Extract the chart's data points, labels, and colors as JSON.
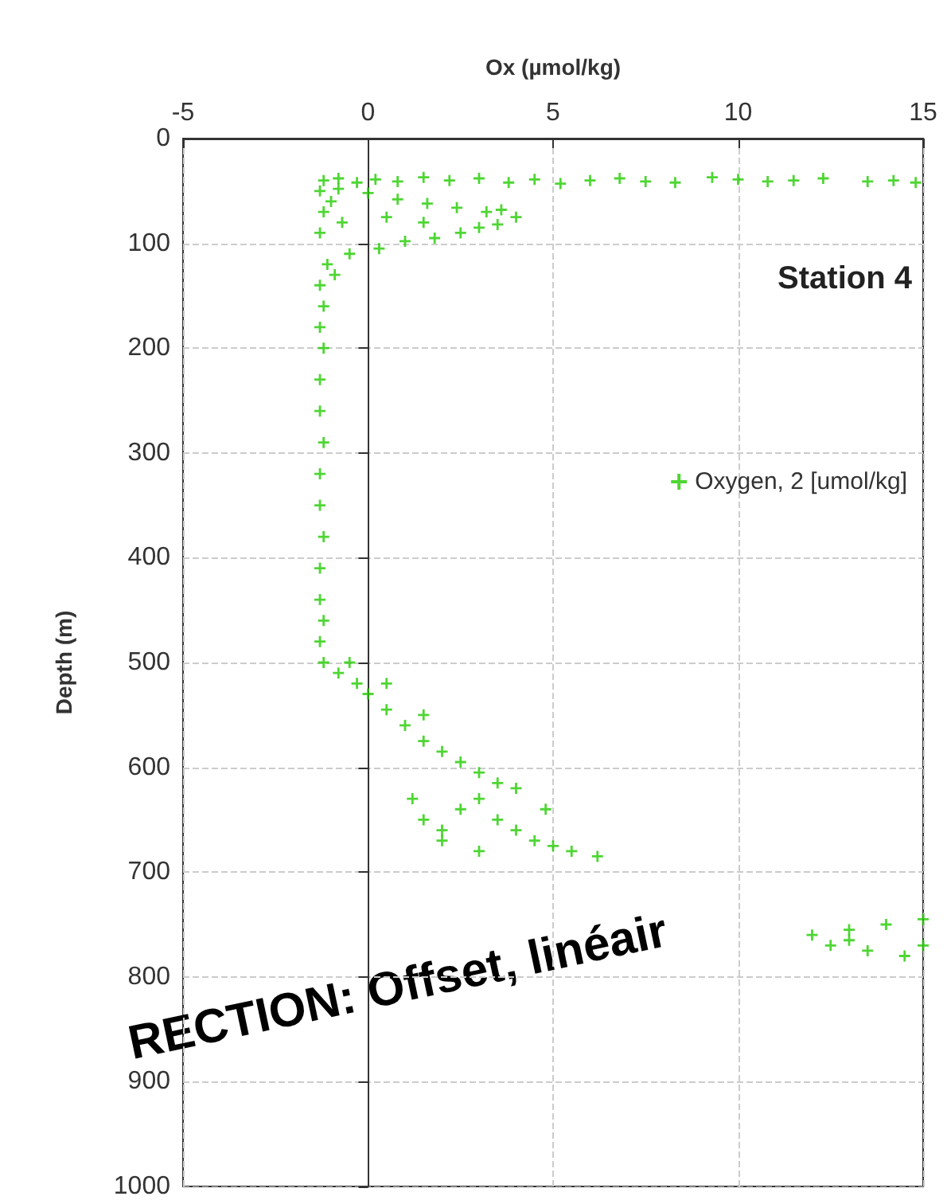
{
  "chart_data": {
    "type": "scatter",
    "xlabel": "Ox (µmol/kg)",
    "ylabel": "Depth (m)",
    "xlim": [
      -5,
      15
    ],
    "xticks": [
      -5,
      0,
      5,
      10,
      15
    ],
    "ylim": [
      1000,
      0
    ],
    "yticks": [
      0,
      100,
      200,
      300,
      400,
      500,
      600,
      700,
      800,
      900,
      1000
    ],
    "grid": true,
    "legend": "right",
    "marker": "cross",
    "annotations": [
      "Station 4",
      "RECTION: Offset, linéair"
    ],
    "series": [
      {
        "name": "Oxygen, 2 [umol/kg]",
        "color": "#22cc00",
        "x": [
          -1.2,
          -0.8,
          -0.3,
          0.2,
          0.8,
          1.5,
          2.2,
          3,
          3.8,
          4.5,
          5.2,
          6,
          6.8,
          7.5,
          8.3,
          9.3,
          10,
          10.8,
          11.5,
          12.3,
          13.5,
          14.2,
          14.8,
          -0.8,
          0,
          0.8,
          1.6,
          2.4,
          3.2,
          4,
          3.6,
          -0.5,
          0.3,
          1,
          1.8,
          2.5,
          3,
          3.5,
          -0.7,
          0.5,
          1.5,
          -1.3,
          -1.2,
          -1.3,
          -1.1,
          -1.3,
          -1.2,
          -1.3,
          -1.2,
          -1.3,
          -1.3,
          -1.2,
          -1.3,
          -1.3,
          -1.2,
          -1.3,
          -1.3,
          -1.2,
          -1.3,
          -1,
          -0.9,
          -1.2,
          -0.8,
          -0.3,
          0,
          0.5,
          1,
          1.5,
          2,
          2.5,
          3,
          3.5,
          -0.5,
          0.5,
          1.5,
          1.2,
          1.5,
          2,
          2.5,
          3,
          3.5,
          4,
          4.5,
          5,
          5.5,
          6.2,
          3,
          2,
          4,
          4.8,
          12,
          13,
          14,
          15,
          12.5,
          13.5,
          14.5,
          15,
          13
        ],
        "values": [
          40,
          38,
          42,
          39,
          41,
          37,
          40,
          38,
          42,
          39,
          43,
          40,
          38,
          41,
          42,
          37,
          39,
          41,
          40,
          38,
          41,
          40,
          42,
          48,
          52,
          58,
          62,
          66,
          70,
          75,
          68,
          110,
          105,
          98,
          95,
          90,
          85,
          82,
          80,
          75,
          80,
          50,
          70,
          90,
          120,
          140,
          160,
          180,
          200,
          230,
          260,
          290,
          320,
          350,
          380,
          410,
          440,
          460,
          480,
          60,
          130,
          500,
          510,
          520,
          530,
          545,
          560,
          575,
          585,
          595,
          605,
          615,
          500,
          520,
          550,
          630,
          650,
          660,
          640,
          630,
          650,
          660,
          670,
          675,
          680,
          685,
          680,
          670,
          620,
          640,
          760,
          755,
          750,
          745,
          770,
          775,
          780,
          770,
          765
        ]
      }
    ]
  }
}
